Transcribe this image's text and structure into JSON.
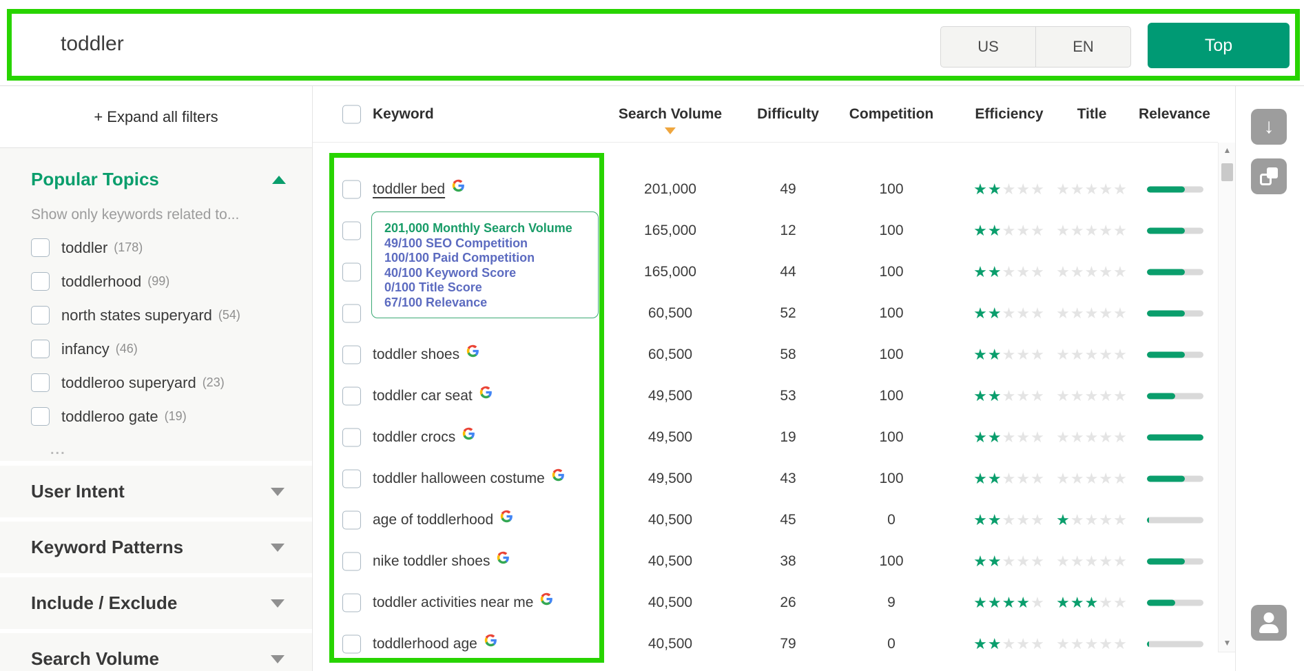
{
  "colors": {
    "annotation": "#28d400",
    "brand_button": "#009a74",
    "accent_green": "#0a9e6c",
    "sort_orange": "#efa63e",
    "metric_indigo": "#5c6bc0",
    "tooltip_green": "#199c68",
    "star_empty": "#e4e4e4"
  },
  "icons": {
    "download": "↓",
    "scroll_up": "▲",
    "scroll_down": "▼"
  },
  "topbar": {
    "query": "toddler",
    "country": "US",
    "language": "EN",
    "submit_label": "Top"
  },
  "sidebar": {
    "expand_all_label": "+ Expand all filters",
    "popular_topics": {
      "title": "Popular Topics",
      "hint": "Show only keywords related to...",
      "topics": [
        {
          "label": "toddler",
          "count": "178"
        },
        {
          "label": "toddlerhood",
          "count": "99"
        },
        {
          "label": "north states superyard",
          "count": "54"
        },
        {
          "label": "infancy",
          "count": "46"
        },
        {
          "label": "toddleroo superyard",
          "count": "23"
        },
        {
          "label": "toddleroo gate",
          "count": "19"
        }
      ],
      "more_label": "..."
    },
    "sections": [
      {
        "label": "User Intent"
      },
      {
        "label": "Keyword Patterns"
      },
      {
        "label": "Include / Exclude"
      },
      {
        "label": "Search Volume"
      }
    ]
  },
  "table": {
    "header": {
      "keyword": "Keyword",
      "columns": [
        "Search Volume",
        "Difficulty",
        "Competition",
        "Efficiency",
        "Title",
        "Relevance"
      ],
      "sorted_by": "Search Volume"
    },
    "rows": [
      {
        "keyword": "toddler bed",
        "hovered": true,
        "google_icon": true,
        "search_volume": "201,000",
        "difficulty": "49",
        "competition": "100",
        "efficiency_stars": 2,
        "title_stars": 0,
        "relevance_pct": 67
      },
      {
        "keyword": "",
        "covered_by_tooltip": true,
        "google_icon": false,
        "search_volume": "165,000",
        "difficulty": "12",
        "competition": "100",
        "efficiency_stars": 2,
        "title_stars": 0,
        "relevance_pct": 67
      },
      {
        "keyword": "",
        "covered_by_tooltip": true,
        "google_icon": false,
        "search_volume": "165,000",
        "difficulty": "44",
        "competition": "100",
        "efficiency_stars": 2,
        "title_stars": 0,
        "relevance_pct": 67
      },
      {
        "keyword": "",
        "covered_by_tooltip": true,
        "google_icon": false,
        "search_volume": "60,500",
        "difficulty": "52",
        "competition": "100",
        "efficiency_stars": 2,
        "title_stars": 0,
        "relevance_pct": 67
      },
      {
        "keyword": "toddler shoes",
        "google_icon": true,
        "search_volume": "60,500",
        "difficulty": "58",
        "competition": "100",
        "efficiency_stars": 2,
        "title_stars": 0,
        "relevance_pct": 67
      },
      {
        "keyword": "toddler car seat",
        "google_icon": true,
        "search_volume": "49,500",
        "difficulty": "53",
        "competition": "100",
        "efficiency_stars": 2,
        "title_stars": 0,
        "relevance_pct": 50
      },
      {
        "keyword": "toddler crocs",
        "google_icon": true,
        "search_volume": "49,500",
        "difficulty": "19",
        "competition": "100",
        "efficiency_stars": 2,
        "title_stars": 0,
        "relevance_pct": 100
      },
      {
        "keyword": "toddler halloween costume",
        "google_icon": true,
        "search_volume": "49,500",
        "difficulty": "43",
        "competition": "100",
        "efficiency_stars": 2,
        "title_stars": 0,
        "relevance_pct": 67
      },
      {
        "keyword": "age of toddlerhood",
        "google_icon": true,
        "search_volume": "40,500",
        "difficulty": "45",
        "competition": "0",
        "efficiency_stars": 2,
        "title_stars": 1,
        "relevance_pct": 3
      },
      {
        "keyword": "nike toddler shoes",
        "google_icon": true,
        "search_volume": "40,500",
        "difficulty": "38",
        "competition": "100",
        "efficiency_stars": 2,
        "title_stars": 0,
        "relevance_pct": 67
      },
      {
        "keyword": "toddler activities near me",
        "google_icon": true,
        "search_volume": "40,500",
        "difficulty": "26",
        "competition": "9",
        "efficiency_stars": 4,
        "title_stars": 3,
        "relevance_pct": 50
      },
      {
        "keyword": "toddlerhood age",
        "google_icon": true,
        "search_volume": "40,500",
        "difficulty": "79",
        "competition": "0",
        "efficiency_stars": 2,
        "title_stars": 0,
        "relevance_pct": 3
      }
    ]
  },
  "tooltip": {
    "lines": [
      {
        "text": "201,000 Monthly Search Volume",
        "highlight": true
      },
      {
        "text": "49/100 SEO Competition"
      },
      {
        "text": "100/100 Paid Competition"
      },
      {
        "text": "40/100 Keyword Score"
      },
      {
        "text": "0/100 Title Score"
      },
      {
        "text": "67/100 Relevance"
      }
    ]
  }
}
